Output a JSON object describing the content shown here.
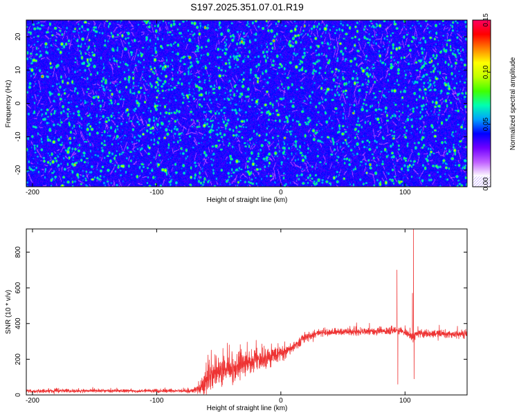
{
  "figure_title": "S197.2025.351.07.01.R19",
  "chart_data": [
    {
      "type": "heatmap",
      "title": "S197.2025.351.07.01.R19",
      "xlabel": "Height of straight line (km)",
      "ylabel": "Frequency (Hz)",
      "xlim": [
        -205,
        150
      ],
      "ylim": [
        -25,
        25
      ],
      "x_ticks": [
        -200,
        -100,
        0,
        100
      ],
      "x_tick_labels": [
        "-200",
        "-100",
        "0",
        "100"
      ],
      "y_ticks": [
        -20,
        -10,
        0,
        10,
        20
      ],
      "y_tick_labels": [
        "-20",
        "-10",
        "0",
        "10",
        "20"
      ],
      "colorbar": {
        "label": "Normalized spectral amplitude",
        "range": [
          0.0,
          0.15
        ],
        "ticks": [
          0.0,
          0.05,
          0.1,
          0.15
        ],
        "tick_labels": [
          "0.00",
          "0.05",
          "0.10",
          "0.15"
        ],
        "colors": [
          "#ffffff",
          "#c060ff",
          "#7000ff",
          "#0000ff",
          "#00a0ff",
          "#00ffb0",
          "#40ff00",
          "#c0ff00",
          "#ffff00",
          "#ff8000",
          "#ff0000",
          "#ff0060"
        ]
      },
      "field_description": "noise-like field, mostly blue (~0.02-0.04) with scattered cyan/green speckles (~0.05-0.08) and rare yellow/red peaks (~0.10-0.14)",
      "background_value": 0.03,
      "grid": false
    },
    {
      "type": "line",
      "title": "",
      "xlabel": "Height of straight line (km)",
      "ylabel": "SNR (10 * v/v)",
      "xlim": [
        -205,
        150
      ],
      "ylim": [
        0,
        930
      ],
      "x_ticks": [
        -200,
        -100,
        0,
        100
      ],
      "x_tick_labels": [
        "-200",
        "-100",
        "0",
        "100"
      ],
      "y_ticks": [
        0,
        200,
        400,
        600,
        800
      ],
      "y_tick_labels": [
        "0",
        "200",
        "400",
        "600",
        "800"
      ],
      "grid": false,
      "series": [
        {
          "name": "SNR",
          "color": "#ee3333",
          "x": [
            -205,
            -180,
            -150,
            -120,
            -90,
            -75,
            -70,
            -65,
            -60,
            -55,
            -50,
            -45,
            -40,
            -35,
            -30,
            -25,
            -20,
            -15,
            -10,
            -5,
            0,
            5,
            10,
            15,
            20,
            25,
            30,
            40,
            50,
            60,
            70,
            80,
            90,
            92,
            94,
            96,
            100,
            104,
            106,
            108,
            110,
            115,
            120,
            130,
            140,
            150
          ],
          "values": [
            22,
            22,
            23,
            23,
            22,
            22,
            25,
            45,
            85,
            110,
            125,
            140,
            150,
            165,
            170,
            180,
            190,
            200,
            210,
            220,
            235,
            250,
            265,
            295,
            320,
            335,
            345,
            350,
            355,
            355,
            355,
            355,
            358,
            360,
            362,
            360,
            350,
            335,
            320,
            330,
            350,
            345,
            340,
            340,
            340,
            338
          ],
          "noise_amplitude": [
            10,
            10,
            10,
            10,
            10,
            10,
            15,
            45,
            90,
            100,
            100,
            100,
            95,
            90,
            85,
            80,
            75,
            65,
            60,
            55,
            45,
            40,
            35,
            30,
            28,
            25,
            22,
            20,
            20,
            20,
            20,
            20,
            22,
            22,
            22,
            22,
            25,
            30,
            35,
            30,
            25,
            22,
            22,
            22,
            22,
            22
          ],
          "spikes": [
            {
              "x": 93.5,
              "value": 700
            },
            {
              "x": 94.2,
              "value": 60
            },
            {
              "x": 106.0,
              "value": 570
            },
            {
              "x": 106.8,
              "value": 930
            },
            {
              "x": 107.3,
              "value": 90
            }
          ]
        }
      ]
    }
  ]
}
